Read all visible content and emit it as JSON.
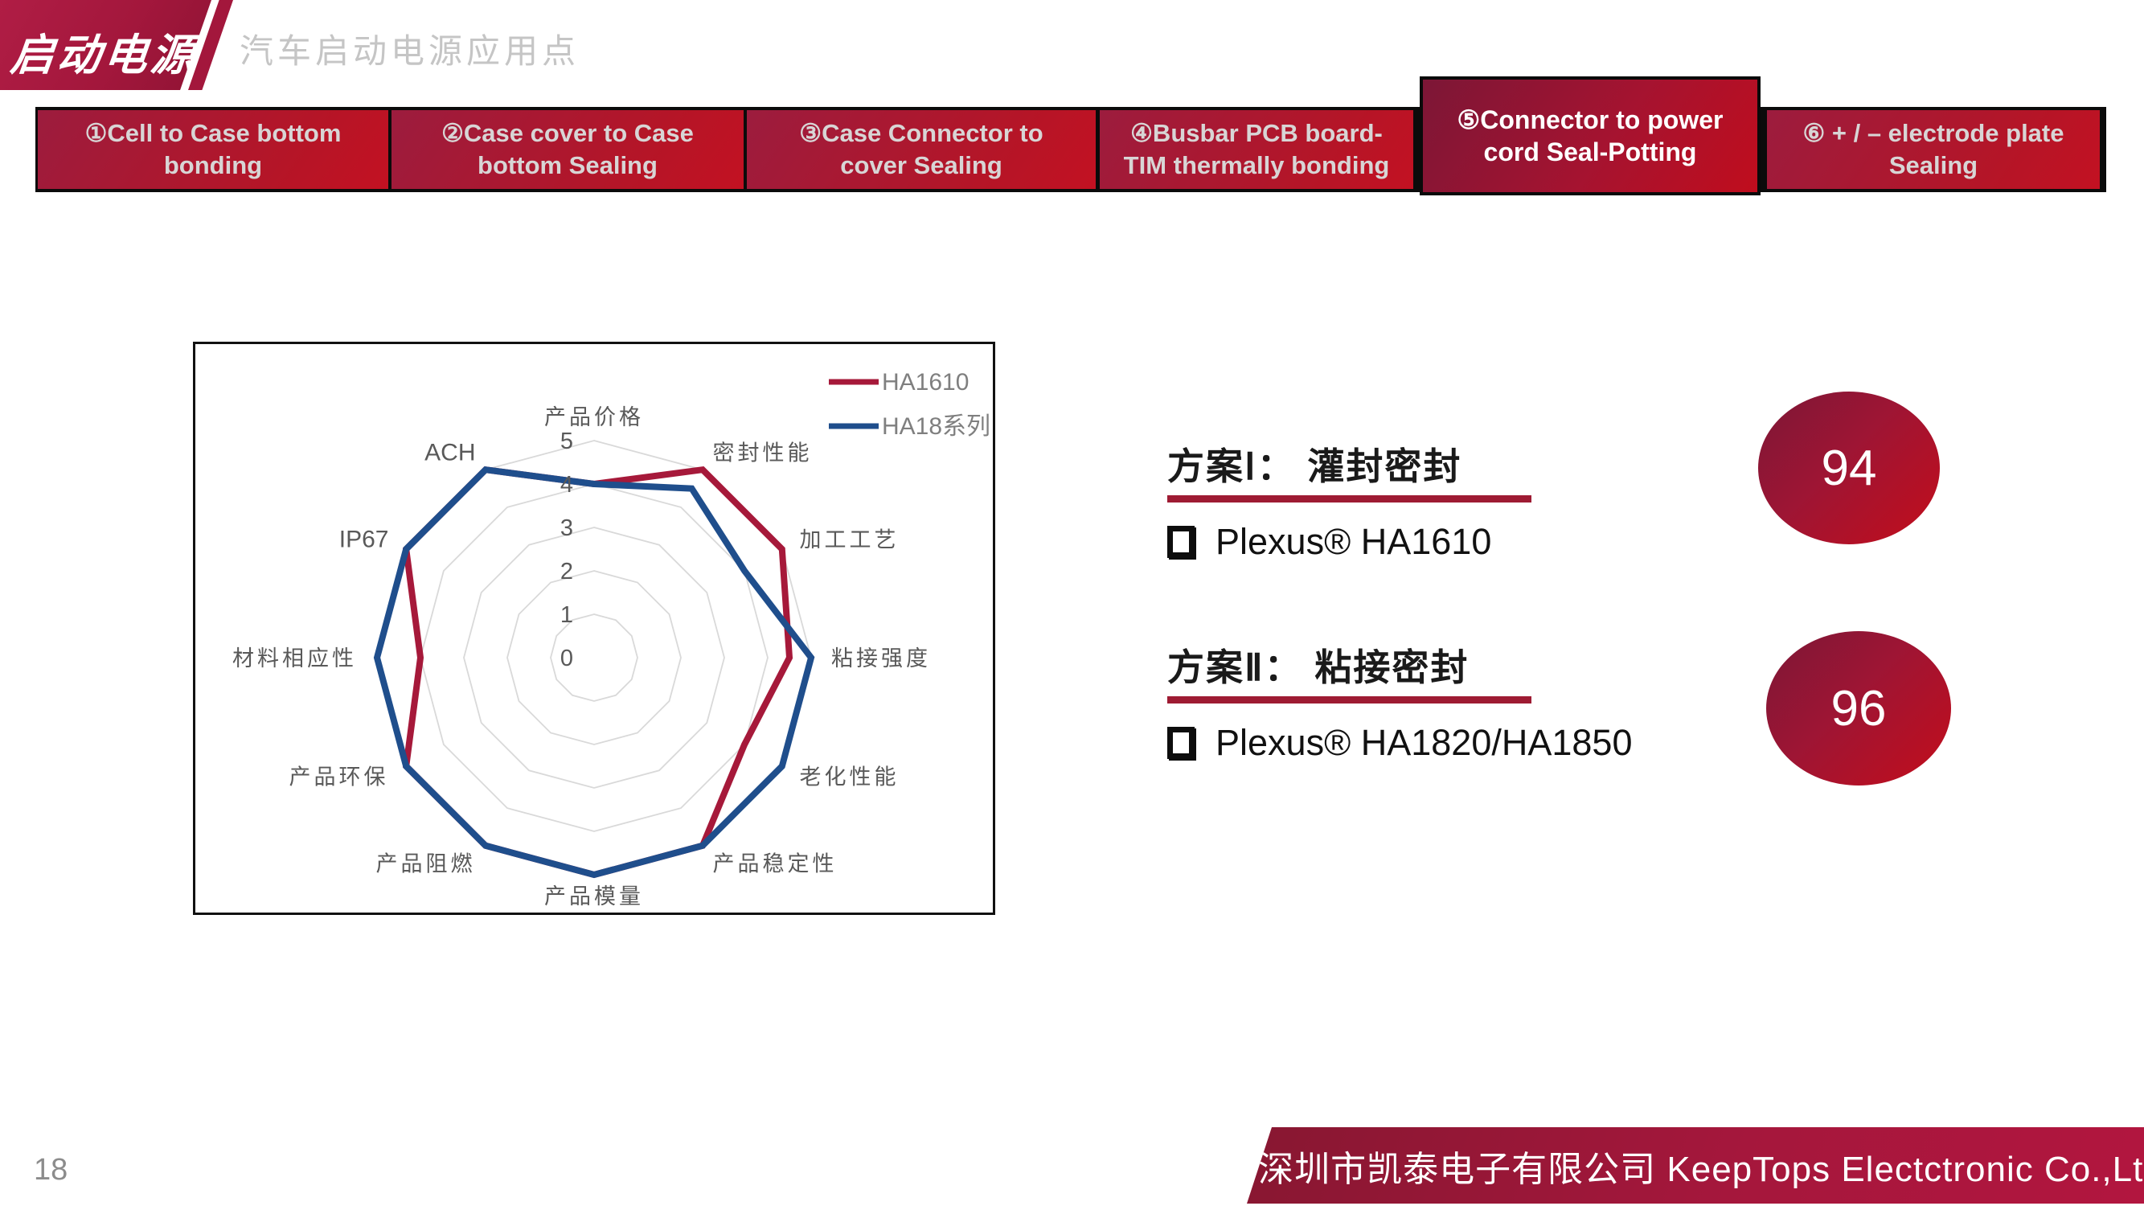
{
  "header": {
    "logo_text": "启动电源",
    "title": "汽车启动电源应用点"
  },
  "tabs": [
    {
      "label": "①Cell to Case bottom bonding",
      "active": false
    },
    {
      "label": "②Case cover to Case bottom Sealing",
      "active": false
    },
    {
      "label": "③Case Connector to cover Sealing",
      "active": false
    },
    {
      "label": "④Busbar PCB board-TIM thermally bonding",
      "active": false
    },
    {
      "label": "⑤Connector to power cord Seal-Potting",
      "active": true
    },
    {
      "label": "⑥ + / – electrode plate Sealing",
      "active": false
    }
  ],
  "chart_data": {
    "type": "radar",
    "categories": [
      "产品价格",
      "密封性能",
      "加工工艺",
      "粘接强度",
      "老化性能",
      "产品稳定性",
      "产品模量",
      "产品阻燃",
      "产品环保",
      "材料相应性",
      "IP67",
      "ACH"
    ],
    "series": [
      {
        "name": "HA1610",
        "color": "#a6193a",
        "values": [
          4,
          5,
          5,
          4.5,
          4,
          5,
          5,
          5,
          5,
          4,
          5,
          5
        ]
      },
      {
        "name": "HA18系列",
        "color": "#1f4e8c",
        "values": [
          4,
          4.5,
          4,
          5,
          5,
          5,
          5,
          5,
          5,
          5,
          5,
          5
        ]
      }
    ],
    "rlim": [
      0,
      5
    ],
    "ring_step": 1,
    "grid": true,
    "grid_color": "#d9d9d9",
    "tick_labels": [
      "0",
      "1",
      "2",
      "3",
      "4",
      "5"
    ],
    "label_color": "#595959",
    "legend_position": "top-right",
    "legend_text_color": "#7f7f7f"
  },
  "plans": [
    {
      "heading": "方案Ⅰ：  灌封密封",
      "product": "Plexus® HA1610",
      "score": "94"
    },
    {
      "heading": "方案Ⅱ：  粘接密封",
      "product": "Plexus® HA1820/HA1850",
      "score": "96"
    }
  ],
  "footer": {
    "company": "深圳市凯泰电子有限公司 KeepTops Electctronic Co.,Ltd",
    "page_number": "18"
  },
  "colors": {
    "accent_crimson": "#a3173c",
    "underline": "#9e1b33",
    "series_red": "#a6193a",
    "series_blue": "#1f4e8c"
  }
}
